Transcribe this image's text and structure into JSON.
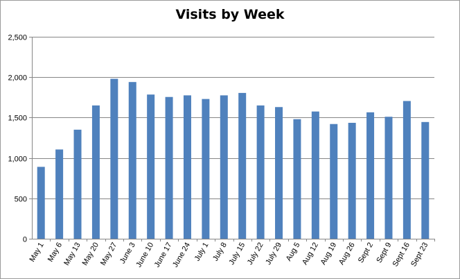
{
  "chart_data": {
    "type": "bar",
    "title": "Visits by Week",
    "xlabel": "",
    "ylabel": "",
    "ylim": [
      0,
      2500
    ],
    "yticks": [
      0,
      500,
      1000,
      1500,
      2000,
      2500
    ],
    "ytick_labels": [
      "0",
      "500",
      "1,000",
      "1,500",
      "2,000",
      "2,500"
    ],
    "grid": true,
    "legend": "none",
    "bar_color": "#4F81BD",
    "categories": [
      "May 1",
      "May 6",
      "May 13",
      "May 20",
      "May 27",
      "June 3",
      "June 10",
      "June 17",
      "June 24",
      "July 1",
      "July 8",
      "July 15",
      "July 22",
      "July 29",
      "Aug 5",
      "Aug 12",
      "Aug 19",
      "Aug 26",
      "Sept 2",
      "Sept 9",
      "Sept 16",
      "Sept 23"
    ],
    "values": [
      890,
      1105,
      1350,
      1650,
      1980,
      1940,
      1785,
      1755,
      1775,
      1730,
      1775,
      1805,
      1650,
      1630,
      1480,
      1575,
      1420,
      1435,
      1565,
      1510,
      1705,
      1445
    ]
  }
}
